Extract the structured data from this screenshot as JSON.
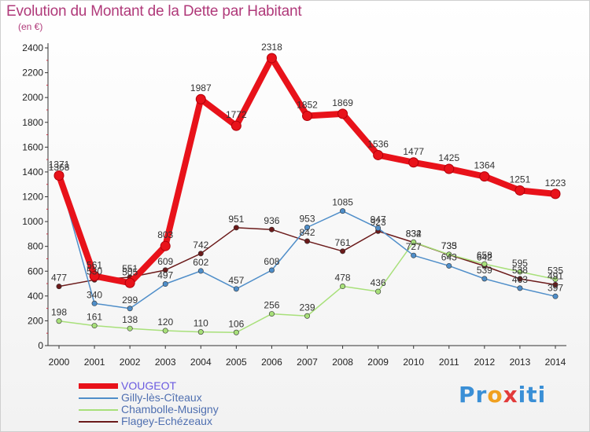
{
  "header": {
    "title": "Evolution du Montant de la Dette par Habitant",
    "subtitle": "(en €)"
  },
  "logo": {
    "text": "Proxiti",
    "letters": [
      "P",
      "r",
      "o",
      "x",
      "i",
      "t",
      "i"
    ],
    "colors": [
      "#3a8fd6",
      "#3a8fd6",
      "#f0a020",
      "#e23a3a",
      "#3a8fd6",
      "#3a8fd6",
      "#3a8fd6"
    ]
  },
  "chart_data": {
    "type": "line",
    "title": "Evolution du Montant de la Dette par Habitant",
    "subtitle": "(en €)",
    "xlabel": "",
    "ylabel": "",
    "x": [
      "2000",
      "2001",
      "2002",
      "2003",
      "2004",
      "2005",
      "2006",
      "2007",
      "2008",
      "2009",
      "2010",
      "2011",
      "2012",
      "2013",
      "2014"
    ],
    "ylim": [
      0,
      2400
    ],
    "yticks": [
      0,
      200,
      400,
      600,
      800,
      1000,
      1200,
      1400,
      1600,
      1800,
      2000,
      2200,
      2400
    ],
    "grid": false,
    "legend_position": "bottom-left",
    "series": [
      {
        "name": "Flagey-Echézeaux",
        "color": "#6b1a1a",
        "values": [
          477,
          530,
          551,
          609,
          742,
          951,
          936,
          842,
          761,
          923,
          832,
          733,
          642,
          538,
          491
        ],
        "labels": [
          "477",
          "530",
          "551",
          "609",
          "742",
          "951",
          "936",
          "842",
          "761",
          "923",
          "832",
          "733",
          "642",
          "538",
          "491"
        ]
      },
      {
        "name": "Chambolle-Musigny",
        "color": "#a8e07a",
        "values": [
          198,
          161,
          138,
          120,
          110,
          106,
          256,
          239,
          478,
          436,
          834,
          735,
          658,
          595,
          535
        ],
        "labels": [
          "198",
          "161",
          "138",
          "120",
          "110",
          "106",
          "256",
          "239",
          "478",
          "436",
          "834",
          "735",
          "658",
          "595",
          "535"
        ]
      },
      {
        "name": "Gilly-lès-Cîteaux",
        "color": "#4f8ec9",
        "values": [
          1368,
          340,
          299,
          497,
          602,
          457,
          608,
          953,
          1085,
          947,
          727,
          643,
          539,
          463,
          397
        ],
        "labels": [
          "1368",
          "340",
          "299",
          "497",
          "602",
          "457",
          "608",
          "953",
          "1085",
          "947",
          "727",
          "643",
          "539",
          "463",
          "397"
        ]
      },
      {
        "name": "VOUGEOT",
        "color": "#e8121a",
        "values": [
          1371,
          561,
          505,
          803,
          1987,
          1772,
          2318,
          1852,
          1869,
          1536,
          1477,
          1425,
          1364,
          1251,
          1223
        ],
        "labels": [
          "1371",
          "561",
          "505",
          "803",
          "1987",
          "1772",
          "2318",
          "1852",
          "1869",
          "1536",
          "1477",
          "1425",
          "1364",
          "1251",
          "1223"
        ]
      }
    ]
  },
  "legend": [
    {
      "name": "VOUGEOT",
      "color": "#e8121a",
      "text_color": "#6a5ae0"
    },
    {
      "name": "Gilly-lès-Cîteaux",
      "color": "#4f8ec9",
      "text_color": "#4f6fb0"
    },
    {
      "name": "Chambolle-Musigny",
      "color": "#a8e07a",
      "text_color": "#4f6fb0"
    },
    {
      "name": "Flagey-Echézeaux",
      "color": "#6b1a1a",
      "text_color": "#4f6fb0"
    }
  ]
}
